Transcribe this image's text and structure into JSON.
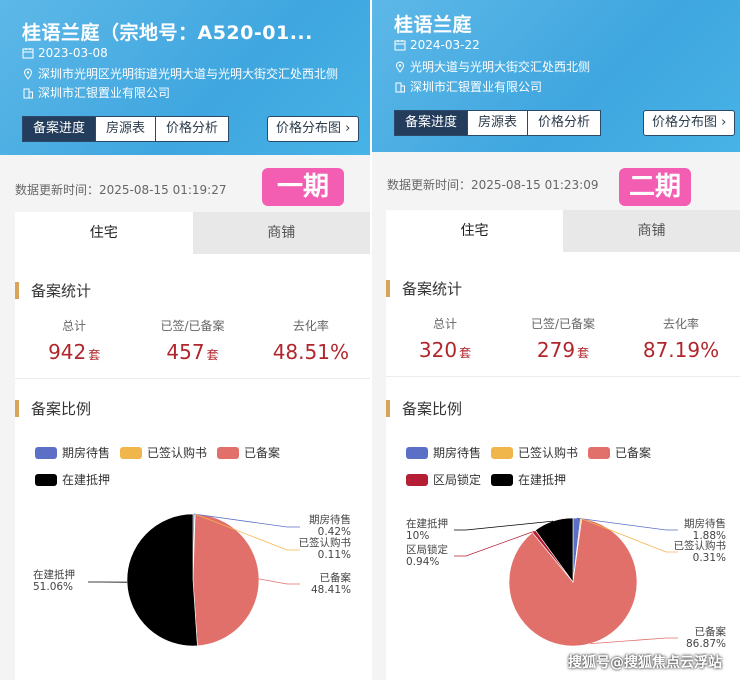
{
  "panels": [
    {
      "title": "桂语兰庭（宗地号：A520-01...",
      "date": "2023-03-08",
      "address": "深圳市光明区光明街道光明大道与光明大街交汇处西北侧",
      "developer": "深圳市汇银置业有限公司",
      "tabs": [
        "备案进度",
        "房源表",
        "价格分析"
      ],
      "price_dist": "价格分布图 ›",
      "update_label": "数据更新时间：",
      "update_time": "2025-08-15 01:19:27",
      "phase": "一期",
      "type_tabs": [
        "住宅",
        "商铺"
      ],
      "stats_title": "备案统计",
      "stats": [
        {
          "label": "总计",
          "value": "942",
          "unit": "套"
        },
        {
          "label": "已签/已备案",
          "value": "457",
          "unit": "套"
        },
        {
          "label": "去化率",
          "value": "48.51%",
          "unit": ""
        }
      ],
      "ratio_title": "备案比例",
      "legend": [
        {
          "name": "期房待售",
          "color": "#5b6fc7"
        },
        {
          "name": "已签认购书",
          "color": "#f0b64c"
        },
        {
          "name": "已备案",
          "color": "#e2706a"
        },
        {
          "name": "在建抵押",
          "color": "#000000"
        }
      ],
      "labels": {
        "a": [
          "期房待售",
          "0.42%"
        ],
        "b": [
          "已签认购书",
          "0.11%"
        ],
        "c": [
          "已备案",
          "48.41%"
        ],
        "d": [
          "在建抵押",
          "51.06%"
        ]
      }
    },
    {
      "title": "桂语兰庭",
      "date": "2024-03-22",
      "address": "光明大道与光明大街交汇处西北侧",
      "developer": "深圳市汇银置业有限公司",
      "tabs": [
        "备案进度",
        "房源表",
        "价格分析"
      ],
      "price_dist": "价格分布图 ›",
      "update_label": "数据更新时间：",
      "update_time": "2025-08-15 01:23:09",
      "phase": "二期",
      "type_tabs": [
        "住宅",
        "商铺"
      ],
      "stats_title": "备案统计",
      "stats": [
        {
          "label": "总计",
          "value": "320",
          "unit": "套"
        },
        {
          "label": "已签/已备案",
          "value": "279",
          "unit": "套"
        },
        {
          "label": "去化率",
          "value": "87.19%",
          "unit": ""
        }
      ],
      "ratio_title": "备案比例",
      "legend": [
        {
          "name": "期房待售",
          "color": "#5b6fc7"
        },
        {
          "name": "已签认购书",
          "color": "#f0b64c"
        },
        {
          "name": "已备案",
          "color": "#e2706a"
        },
        {
          "name": "区局锁定",
          "color": "#b51f35"
        },
        {
          "name": "在建抵押",
          "color": "#000000"
        }
      ],
      "labels": {
        "a": [
          "期房待售",
          "1.88%"
        ],
        "b": [
          "已签认购书",
          "0.31%"
        ],
        "c": [
          "已备案",
          "86.87%"
        ],
        "d": [
          "在建抵押",
          "10%"
        ],
        "e": [
          "区局锁定",
          "0.94%"
        ]
      }
    }
  ],
  "chart_data": [
    {
      "type": "pie",
      "title": "备案比例",
      "categories": [
        "期房待售",
        "已签认购书",
        "已备案",
        "在建抵押"
      ],
      "values": [
        0.42,
        0.11,
        48.41,
        51.06
      ],
      "colors": [
        "#5b6fc7",
        "#f0b64c",
        "#e2706a",
        "#000000"
      ]
    },
    {
      "type": "pie",
      "title": "备案比例",
      "categories": [
        "期房待售",
        "已签认购书",
        "已备案",
        "区局锁定",
        "在建抵押"
      ],
      "values": [
        1.88,
        0.31,
        86.87,
        0.94,
        10
      ],
      "colors": [
        "#5b6fc7",
        "#f0b64c",
        "#e2706a",
        "#b51f35",
        "#000000"
      ]
    }
  ],
  "watermark": "搜狐号@搜狐焦点云浮站"
}
